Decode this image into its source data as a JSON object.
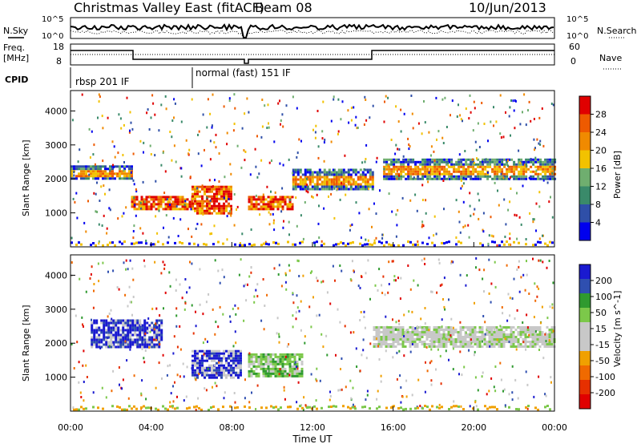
{
  "header": {
    "title": "Christmas Valley East (fitACF)",
    "beam": "Beam 08",
    "date": "10/Jun/2013"
  },
  "noise_panel": {
    "left_label": "N.Sky",
    "right_label": "N.Search",
    "left_ticks": [
      "10^5",
      "10^0"
    ],
    "right_ticks": [
      "10^5",
      "10^0"
    ]
  },
  "freq_panel": {
    "left_label_1": "Freq.",
    "left_label_2": "[MHz]",
    "right_label": "Nave",
    "left_ticks": [
      "18",
      "8"
    ],
    "right_ticks": [
      "60",
      "0"
    ]
  },
  "cpid": {
    "label": "CPID",
    "modes": [
      "rbsp 201 IF",
      "normal (fast) 151 IF"
    ]
  },
  "colors": {
    "power_scale": [
      "#0000ee",
      "#2f4fa8",
      "#3a8a6a",
      "#6fae6f",
      "#f2c200",
      "#f08a00",
      "#ee5a00",
      "#e00000"
    ],
    "velocity_scale": [
      "#1a1ad0",
      "#2f4fb0",
      "#2f9a2f",
      "#7cc84a",
      "#c8c8c8",
      "#c8c8c8",
      "#f0a000",
      "#f06a00",
      "#e63000",
      "#e00000"
    ]
  },
  "chart_data": [
    {
      "type": "heatmap",
      "title": "",
      "xlabel": "Time UT",
      "ylabel": "Slant Range [km]",
      "xlim": [
        "00:00",
        "24:00"
      ],
      "ylim": [
        0,
        4600
      ],
      "x_ticks": [
        "00:00",
        "04:00",
        "08:00",
        "12:00",
        "16:00",
        "20:00",
        "00:00"
      ],
      "y_ticks": [
        "1000",
        "2000",
        "3000",
        "4000"
      ],
      "colorbar": {
        "label": "Power [dB]",
        "ticks": [
          "4",
          "8",
          "12",
          "16",
          "20",
          "24",
          "28"
        ]
      },
      "features": [
        {
          "start_h": 0.0,
          "end_h": 3.0,
          "range_km": [
            2000,
            2400
          ],
          "level": "medium"
        },
        {
          "start_h": 3.0,
          "end_h": 6.0,
          "range_km": [
            1100,
            1500
          ],
          "level": "high"
        },
        {
          "start_h": 6.0,
          "end_h": 8.0,
          "range_km": [
            1000,
            1800
          ],
          "level": "high"
        },
        {
          "start_h": 8.8,
          "end_h": 11.0,
          "range_km": [
            1100,
            1500
          ],
          "level": "high"
        },
        {
          "start_h": 11.0,
          "end_h": 15.0,
          "range_km": [
            1700,
            2300
          ],
          "level": "medium"
        },
        {
          "start_h": 15.5,
          "end_h": 24.0,
          "range_km": [
            2000,
            2600
          ],
          "level": "medium"
        }
      ]
    },
    {
      "type": "heatmap",
      "title": "",
      "xlabel": "Time UT",
      "ylabel": "Slant Range [km]",
      "xlim": [
        "00:00",
        "24:00"
      ],
      "ylim": [
        0,
        4600
      ],
      "x_ticks": [
        "00:00",
        "04:00",
        "08:00",
        "12:00",
        "16:00",
        "20:00",
        "00:00"
      ],
      "y_ticks": [
        "1000",
        "2000",
        "3000",
        "4000"
      ],
      "colorbar": {
        "label": "Velocity [m s^-1]",
        "ticks": [
          "200",
          "100",
          "50",
          "15",
          "-15",
          "-50",
          "-100",
          "-200"
        ]
      },
      "features": [
        {
          "start_h": 1.0,
          "end_h": 4.5,
          "range_km": [
            1900,
            2700
          ],
          "velocity": "positive"
        },
        {
          "start_h": 6.0,
          "end_h": 8.5,
          "range_km": [
            1000,
            1800
          ],
          "velocity": "positive"
        },
        {
          "start_h": 8.8,
          "end_h": 11.5,
          "range_km": [
            1000,
            1700
          ],
          "velocity": "low-positive"
        },
        {
          "start_h": 15.0,
          "end_h": 24.0,
          "range_km": [
            1900,
            2500
          ],
          "velocity": "near-zero"
        }
      ]
    }
  ]
}
